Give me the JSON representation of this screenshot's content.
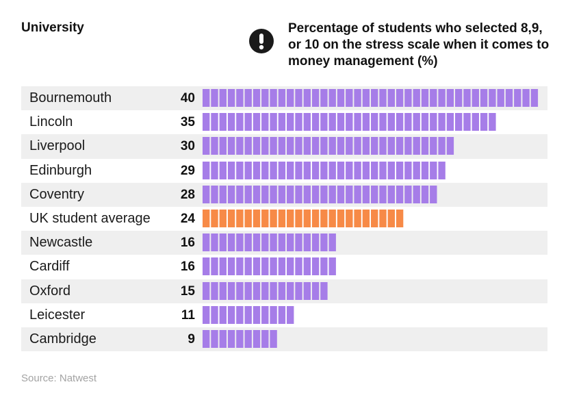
{
  "header": {
    "column_label": "University",
    "chart_title": "Percentage of students who selected 8,9, or 10 on the stress scale when it comes to money management (%)",
    "icon": "exclamation-circle-icon"
  },
  "colors": {
    "default_bar": "#a67de8",
    "highlight_bar": "#f78a47",
    "row_shade": "#efefef",
    "icon": "#1a1a1a"
  },
  "chart_data": {
    "type": "bar",
    "orientation": "horizontal",
    "title": "Percentage of students who selected 8,9, or 10 on the stress scale when it comes to money management (%)",
    "xlabel": "",
    "ylabel": "University",
    "xlim": [
      0,
      40
    ],
    "grid": false,
    "categories": [
      "Bournemouth",
      "Lincoln",
      "Liverpool",
      "Edinburgh",
      "Coventry",
      "UK student average",
      "Newcastle",
      "Cardiff",
      "Oxford",
      "Leicester",
      "Cambridge"
    ],
    "values": [
      40,
      35,
      30,
      29,
      28,
      24,
      16,
      16,
      15,
      11,
      9
    ],
    "highlight": "UK student average"
  },
  "footer": {
    "source": "Source: Natwest"
  }
}
